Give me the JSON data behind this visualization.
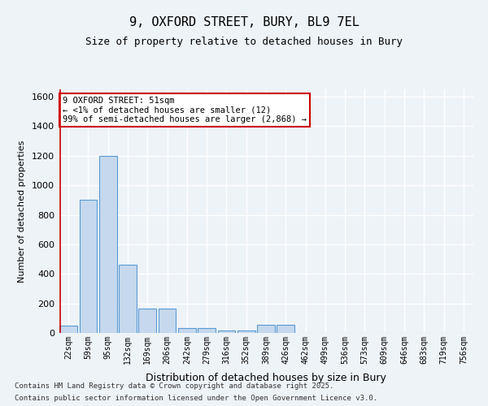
{
  "title_line1": "9, OXFORD STREET, BURY, BL9 7EL",
  "title_line2": "Size of property relative to detached houses in Bury",
  "xlabel": "Distribution of detached houses by size in Bury",
  "ylabel": "Number of detached properties",
  "bar_color": "#c5d8ed",
  "bar_edge_color": "#5b9bd5",
  "categories": [
    "22sqm",
    "59sqm",
    "95sqm",
    "132sqm",
    "169sqm",
    "206sqm",
    "242sqm",
    "279sqm",
    "316sqm",
    "352sqm",
    "389sqm",
    "426sqm",
    "462sqm",
    "499sqm",
    "536sqm",
    "573sqm",
    "609sqm",
    "646sqm",
    "683sqm",
    "719sqm",
    "756sqm"
  ],
  "values": [
    50,
    900,
    1200,
    460,
    165,
    165,
    35,
    35,
    15,
    15,
    55,
    55,
    0,
    0,
    0,
    0,
    0,
    0,
    0,
    0,
    0
  ],
  "ylim": [
    0,
    1650
  ],
  "yticks": [
    0,
    200,
    400,
    600,
    800,
    1000,
    1200,
    1400,
    1600
  ],
  "annotation_text": "9 OXFORD STREET: 51sqm\n← <1% of detached houses are smaller (12)\n99% of semi-detached houses are larger (2,868) →",
  "annotation_bar_index": 0,
  "bg_color": "#eef3f8",
  "plot_bg_color": "#eef3f8",
  "grid_color": "#ffffff",
  "annotation_box_color": "#cc0000",
  "footer_line1": "Contains HM Land Registry data © Crown copyright and database right 2025.",
  "footer_line2": "Contains public sector information licensed under the Open Government Licence v3.0."
}
